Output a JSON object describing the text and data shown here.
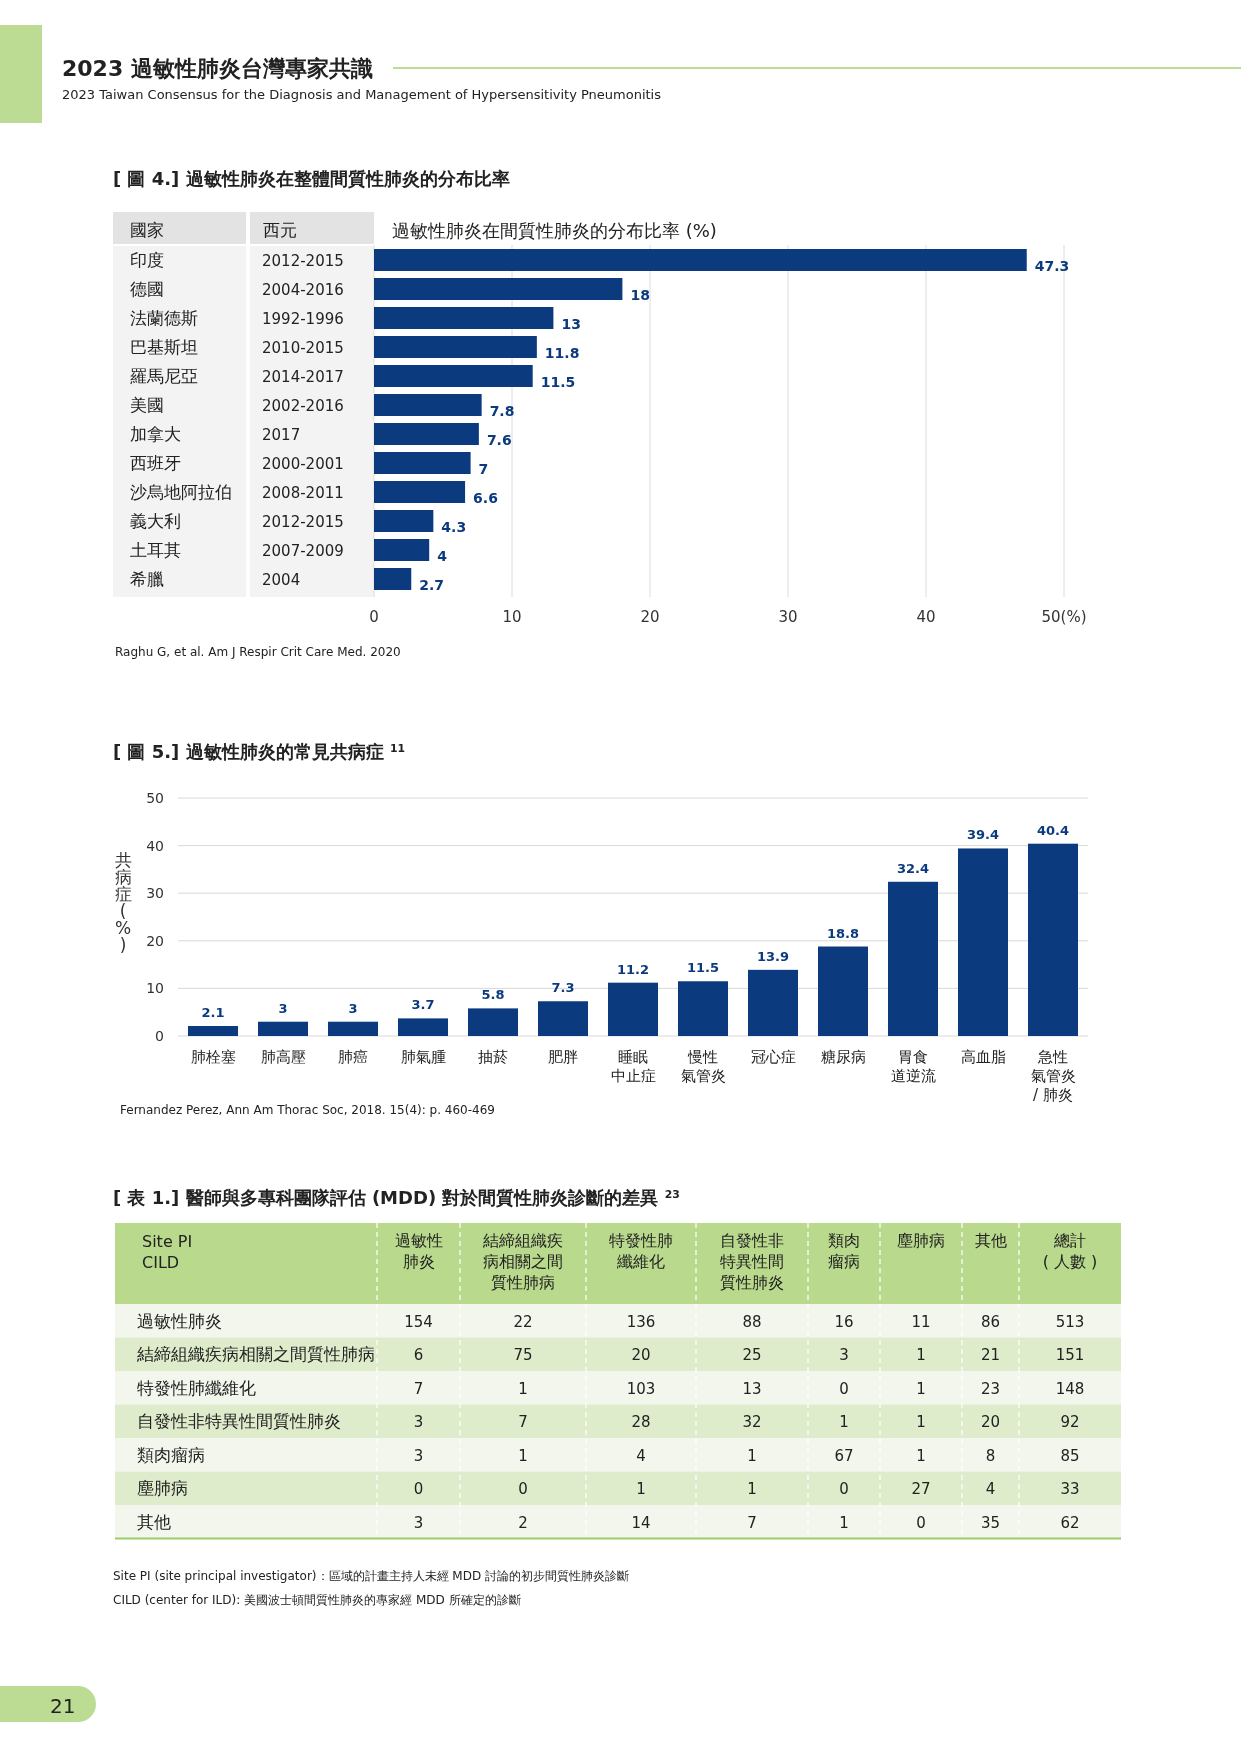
{
  "chart_data": [
    {
      "type": "bar",
      "orientation": "horizontal",
      "title": "[ 圖 4.] 過敏性肺炎在整體間質性肺炎的分布比率",
      "xlabel": "過敏性肺炎在間質性肺炎的分布比率 (%)",
      "categories": [
        "印度",
        "德國",
        "法蘭德斯",
        "巴基斯坦",
        "羅馬尼亞",
        "美國",
        "加拿大",
        "西班牙",
        "沙烏地阿拉伯",
        "義大利",
        "土耳其",
        "希臘"
      ],
      "y2_categories": [
        "2012-2015",
        "2004-2016",
        "1992-1996",
        "2010-2015",
        "2014-2017",
        "2002-2016",
        "2017",
        "2000-2001",
        "2008-2011",
        "2012-2015",
        "2007-2009",
        "2004"
      ],
      "values": [
        47.3,
        18,
        13,
        11.8,
        11.5,
        7.8,
        7.6,
        7,
        6.6,
        4.3,
        4,
        2.7
      ],
      "color": "#0b3a7e",
      "xlim": [
        0,
        50
      ],
      "xticks": [
        0,
        10,
        20,
        30,
        40,
        {
          "value": 50,
          "label": "50(%)"
        }
      ],
      "grid": "x",
      "data_labels": true,
      "annotations": [
        "2023 過敏性肺炎台灣專家共識",
        "2023 Taiwan Consensus for the Diagnosis and Management of Hypersensitivity Pneumonitis",
        "國家",
        "西元",
        "Raghu G, et al. Am J Respir Crit Care Med. 2020",
        "21"
      ]
    },
    {
      "type": "bar",
      "title": "[ 圖 5.] 過敏性肺炎的常見共病症 $^{11}$",
      "ylabel": "共病症 (%)",
      "categories": [
        "肺栓塞",
        "肺高壓",
        "肺癌",
        "肺氣腫",
        "抽菸",
        "肥胖",
        "睡眠中止症",
        "慢性氣管炎",
        "冠心症",
        "糖尿病",
        "胃食道逆流",
        "高血脂",
        "急性氣管炎/ 肺炎"
      ],
      "values": [
        2.1,
        3,
        3,
        3.7,
        5.8,
        7.3,
        11.2,
        11.5,
        13.9,
        18.8,
        32.4,
        39.4,
        40.4
      ],
      "color": "#0b3a7e",
      "ylim": [
        0,
        50
      ],
      "yticks": [
        0,
        10,
        20,
        30,
        40,
        50
      ],
      "grid": "y",
      "data_labels": true,
      "annotations": [
        "Fernandez Perez, Ann Am Thorac Soc, 2018. 15(4): p. 460-469"
      ]
    },
    {
      "type": "heatmap",
      "title": "[ 表 1.] 醫師與多專科團隊評估 (MDD) 對於間質性肺炎診斷的差異 $^{23}$",
      "categories": [
        "過敏性肺炎",
        "結締組織疾病相關之間質性肺病",
        "特發性肺纖維化",
        "自發性非特異性間質性肺炎",
        "類肉瘤病",
        "塵肺病",
        "其他",
        "總計( 人數 )"
      ],
      "y_categories": [
        "過敏性肺炎",
        "結締組織疾病相關之間質性肺病",
        "特發性肺纖維化",
        "自發性非特異性間質性肺炎",
        "類肉瘤病",
        "塵肺病",
        "其他"
      ],
      "cells": [
        [
          154,
          22,
          136,
          88,
          16,
          11,
          86,
          513
        ],
        [
          6,
          75,
          20,
          25,
          3,
          1,
          21,
          151
        ],
        [
          7,
          1,
          103,
          13,
          0,
          1,
          23,
          148
        ],
        [
          3,
          7,
          28,
          32,
          1,
          1,
          20,
          92
        ],
        [
          3,
          1,
          4,
          1,
          67,
          1,
          8,
          85
        ],
        [
          0,
          0,
          1,
          1,
          0,
          27,
          4,
          33
        ],
        [
          3,
          2,
          14,
          7,
          1,
          0,
          35,
          62
        ]
      ],
      "data_labels": true,
      "annotations": [
        "Site PI\nCILD",
        "Site PI (site principal investigator)：區域的計畫主持人未經 MDD 討論的初步間質性肺炎診斷",
        "CILD (center for ILD): 美國波士頓間質性肺炎的專家經 MDD 所確定的診斷"
      ]
    }
  ]
}
